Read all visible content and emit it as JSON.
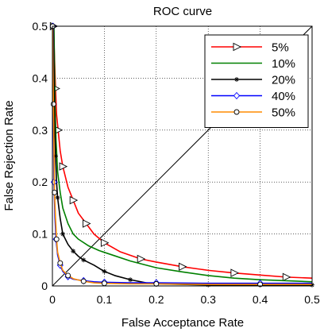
{
  "chart_data": {
    "type": "line",
    "title": "ROC curve",
    "xlabel": "False Acceptance Rate",
    "ylabel": "False Rejection Rate",
    "xlim": [
      0,
      0.5
    ],
    "ylim": [
      0,
      0.5
    ],
    "xticks": [
      "0",
      "0.1",
      "0.2",
      "0.3",
      "0.4",
      "0.5"
    ],
    "yticks": [
      "0",
      "0.1",
      "0.2",
      "0.3",
      "0.4",
      "0.5"
    ],
    "grid": true,
    "legend_position": "top-right",
    "reference_line": {
      "x": [
        0,
        0.5
      ],
      "y": [
        0,
        0.5
      ],
      "color": "#000000"
    },
    "series": [
      {
        "name": "5%",
        "color": "#ff0000",
        "marker": "triangle-right",
        "x": [
          0.002,
          0.004,
          0.006,
          0.008,
          0.011,
          0.015,
          0.02,
          0.03,
          0.04,
          0.05,
          0.065,
          0.08,
          0.1,
          0.13,
          0.17,
          0.2,
          0.25,
          0.3,
          0.35,
          0.4,
          0.45,
          0.5
        ],
        "y": [
          0.5,
          0.44,
          0.38,
          0.33,
          0.3,
          0.26,
          0.23,
          0.19,
          0.165,
          0.14,
          0.12,
          0.1,
          0.083,
          0.066,
          0.052,
          0.046,
          0.037,
          0.03,
          0.025,
          0.021,
          0.017,
          0.015
        ]
      },
      {
        "name": "10%",
        "color": "#008000",
        "marker": "none",
        "x": [
          0.003,
          0.005,
          0.007,
          0.01,
          0.015,
          0.02,
          0.03,
          0.04,
          0.05,
          0.07,
          0.09,
          0.12,
          0.15,
          0.2,
          0.25,
          0.3,
          0.35,
          0.4,
          0.45,
          0.5
        ],
        "y": [
          0.5,
          0.35,
          0.28,
          0.22,
          0.18,
          0.15,
          0.12,
          0.1,
          0.09,
          0.077,
          0.068,
          0.058,
          0.048,
          0.035,
          0.027,
          0.02,
          0.015,
          0.012,
          0.01,
          0.008
        ]
      },
      {
        "name": "20%",
        "color": "#000000",
        "marker": "asterisk",
        "x": [
          0.002,
          0.004,
          0.006,
          0.008,
          0.01,
          0.015,
          0.02,
          0.03,
          0.04,
          0.05,
          0.06,
          0.08,
          0.1,
          0.12,
          0.15,
          0.18,
          0.2,
          0.25,
          0.3,
          0.4,
          0.5
        ],
        "y": [
          0.5,
          0.33,
          0.25,
          0.2,
          0.17,
          0.13,
          0.1,
          0.08,
          0.067,
          0.057,
          0.05,
          0.04,
          0.028,
          0.02,
          0.012,
          0.006,
          0.004,
          0.003,
          0.002,
          0.002,
          0.002
        ]
      },
      {
        "name": "40%",
        "color": "#0000ff",
        "marker": "diamond",
        "x": [
          0.001,
          0.002,
          0.003,
          0.005,
          0.007,
          0.01,
          0.015,
          0.02,
          0.03,
          0.04,
          0.06,
          0.08,
          0.1,
          0.15,
          0.2,
          0.3,
          0.4,
          0.5
        ],
        "y": [
          0.5,
          0.3,
          0.2,
          0.13,
          0.09,
          0.06,
          0.04,
          0.028,
          0.018,
          0.013,
          0.01,
          0.008,
          0.007,
          0.006,
          0.006,
          0.005,
          0.005,
          0.005
        ]
      },
      {
        "name": "50%",
        "color": "#ff8c00",
        "marker": "circle",
        "x": [
          0.0005,
          0.001,
          0.002,
          0.003,
          0.004,
          0.006,
          0.008,
          0.01,
          0.015,
          0.02,
          0.03,
          0.04,
          0.06,
          0.08,
          0.1,
          0.15,
          0.2,
          0.3,
          0.4,
          0.5
        ],
        "y": [
          0.5,
          0.43,
          0.35,
          0.26,
          0.18,
          0.13,
          0.09,
          0.065,
          0.044,
          0.03,
          0.02,
          0.014,
          0.009,
          0.006,
          0.005,
          0.004,
          0.004,
          0.003,
          0.003,
          0.003
        ]
      }
    ]
  }
}
